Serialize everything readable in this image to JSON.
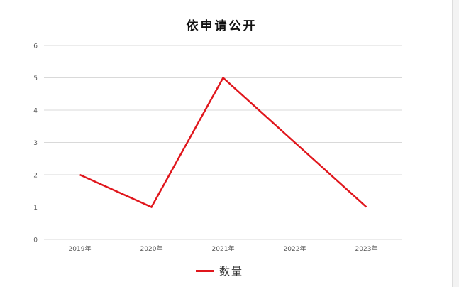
{
  "chart_data": {
    "type": "line",
    "title": "依申请公开",
    "categories": [
      "2019年",
      "2020年",
      "2021年",
      "2022年",
      "2023年"
    ],
    "series": [
      {
        "name": "数量",
        "values": [
          2,
          1,
          5,
          3,
          1
        ],
        "color": "#e0161c"
      }
    ],
    "ylim": [
      0,
      6
    ],
    "yticks": [
      0,
      1,
      2,
      3,
      4,
      5,
      6
    ],
    "grid": true,
    "legend": "bottom",
    "xlabel": "",
    "ylabel": ""
  }
}
